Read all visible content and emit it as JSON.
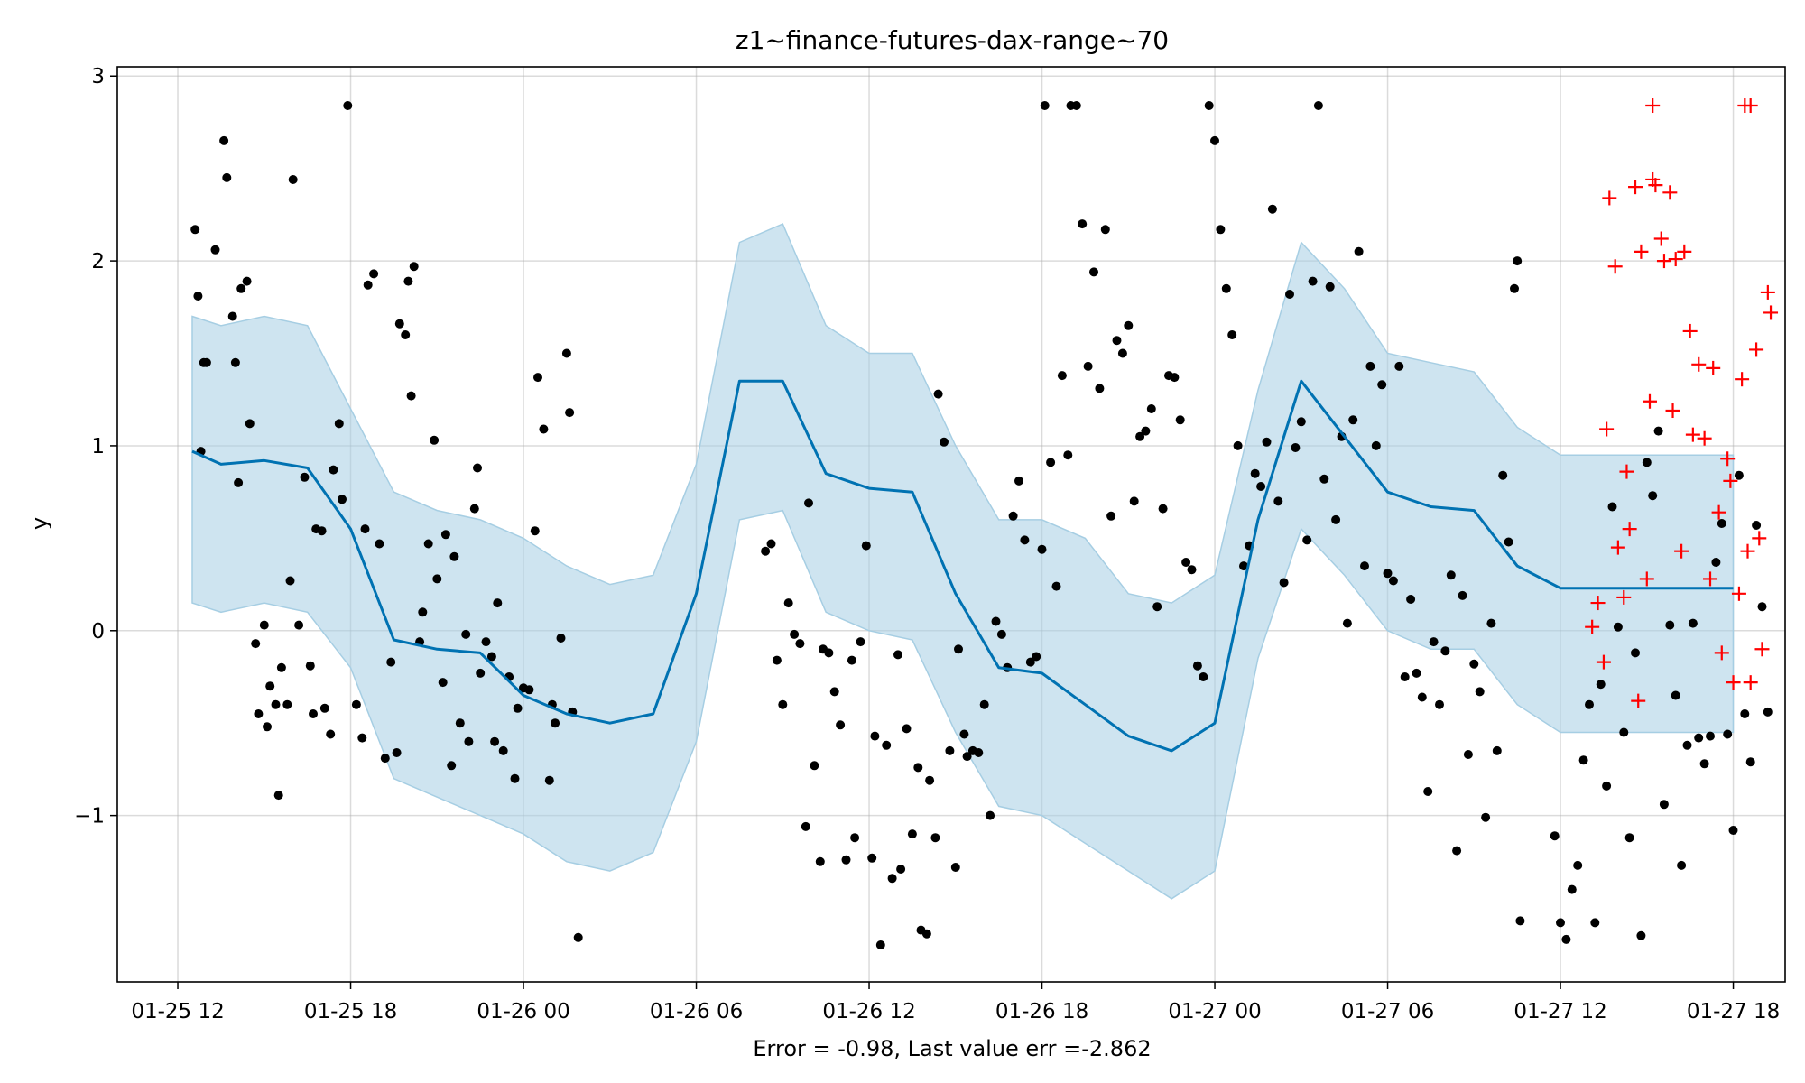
{
  "chart_data": {
    "type": "line",
    "title": "z1~finance-futures-dax-range~70",
    "xlabel": "Error = -0.98, Last value err =-2.862",
    "ylabel": "y",
    "x_ticks": [
      "01-25 12",
      "01-25 18",
      "01-26 00",
      "01-26 06",
      "01-26 12",
      "01-26 18",
      "01-27 00",
      "01-27 06",
      "01-27 12",
      "01-27 18"
    ],
    "y_ticks": [
      "−1",
      "0",
      "1",
      "2",
      "3"
    ],
    "ylim": [
      -1.9,
      3.05
    ],
    "xlim_hours": [
      -2.1,
      55.8
    ],
    "grid": true,
    "colors": {
      "forecast": "#0072B2",
      "band": "#a6cee3",
      "observed": "#000000",
      "future": "#ff0000"
    },
    "forecast": {
      "x_hours": [
        0.5,
        1.5,
        3,
        4.5,
        6,
        7.5,
        9,
        10.5,
        12,
        13.5,
        15,
        16.5,
        18,
        19.5,
        21,
        22.5,
        24,
        25.5,
        27,
        28.5,
        30,
        31.5,
        33,
        34.5,
        36,
        37.5,
        39,
        40.5,
        42,
        43.5,
        45,
        46.5,
        48,
        49.5,
        51,
        52.5,
        54
      ],
      "y": [
        0.97,
        0.9,
        0.92,
        0.88,
        0.55,
        -0.05,
        -0.1,
        -0.12,
        -0.35,
        -0.45,
        -0.5,
        -0.45,
        0.2,
        1.35,
        1.35,
        0.85,
        0.77,
        0.75,
        0.2,
        -0.2,
        -0.23,
        -0.4,
        -0.57,
        -0.65,
        -0.5,
        0.6,
        1.35,
        1.05,
        0.75,
        0.67,
        0.65,
        0.35,
        0.23,
        0.23,
        0.23,
        0.23,
        0.23
      ],
      "upper": [
        1.7,
        1.65,
        1.7,
        1.65,
        1.2,
        0.75,
        0.65,
        0.6,
        0.5,
        0.35,
        0.25,
        0.3,
        0.9,
        2.1,
        2.2,
        1.65,
        1.5,
        1.5,
        1.0,
        0.6,
        0.6,
        0.5,
        0.2,
        0.15,
        0.3,
        1.3,
        2.1,
        1.85,
        1.5,
        1.45,
        1.4,
        1.1,
        0.95,
        0.95,
        0.95,
        0.95,
        0.95
      ],
      "lower": [
        0.15,
        0.1,
        0.15,
        0.1,
        -0.2,
        -0.8,
        -0.9,
        -1.0,
        -1.1,
        -1.25,
        -1.3,
        -1.2,
        -0.6,
        0.6,
        0.65,
        0.1,
        0.0,
        -0.05,
        -0.55,
        -0.95,
        -1.0,
        -1.15,
        -1.3,
        -1.45,
        -1.3,
        -0.15,
        0.55,
        0.3,
        0.0,
        -0.1,
        -0.1,
        -0.4,
        -0.55,
        -0.55,
        -0.55,
        -0.55,
        -0.55
      ]
    },
    "observed": [
      [
        0.6,
        2.17
      ],
      [
        0.7,
        1.81
      ],
      [
        0.8,
        0.97
      ],
      [
        0.9,
        1.45
      ],
      [
        1.0,
        1.45
      ],
      [
        1.3,
        2.06
      ],
      [
        1.6,
        2.65
      ],
      [
        1.7,
        2.45
      ],
      [
        1.9,
        1.7
      ],
      [
        2.0,
        1.45
      ],
      [
        2.1,
        0.8
      ],
      [
        2.2,
        1.85
      ],
      [
        2.4,
        1.89
      ],
      [
        2.5,
        1.12
      ],
      [
        2.7,
        -0.07
      ],
      [
        2.8,
        -0.45
      ],
      [
        3.0,
        0.03
      ],
      [
        3.1,
        -0.52
      ],
      [
        3.2,
        -0.3
      ],
      [
        3.4,
        -0.4
      ],
      [
        3.5,
        -0.89
      ],
      [
        3.6,
        -0.2
      ],
      [
        3.8,
        -0.4
      ],
      [
        3.9,
        0.27
      ],
      [
        4.0,
        2.44
      ],
      [
        4.2,
        0.03
      ],
      [
        4.4,
        0.83
      ],
      [
        4.6,
        -0.19
      ],
      [
        4.7,
        -0.45
      ],
      [
        4.8,
        0.55
      ],
      [
        5.0,
        0.54
      ],
      [
        5.1,
        -0.42
      ],
      [
        5.3,
        -0.56
      ],
      [
        5.4,
        0.87
      ],
      [
        5.6,
        1.12
      ],
      [
        5.7,
        0.71
      ],
      [
        5.9,
        2.84
      ],
      [
        6.2,
        -0.4
      ],
      [
        6.4,
        -0.58
      ],
      [
        6.5,
        0.55
      ],
      [
        6.6,
        1.87
      ],
      [
        6.8,
        1.93
      ],
      [
        7.0,
        0.47
      ],
      [
        7.2,
        -0.69
      ],
      [
        7.4,
        -0.17
      ],
      [
        7.6,
        -0.66
      ],
      [
        7.7,
        1.66
      ],
      [
        7.9,
        1.6
      ],
      [
        8.0,
        1.89
      ],
      [
        8.1,
        1.27
      ],
      [
        8.2,
        1.97
      ],
      [
        8.4,
        -0.06
      ],
      [
        8.5,
        0.1
      ],
      [
        8.7,
        0.47
      ],
      [
        8.9,
        1.03
      ],
      [
        9.0,
        0.28
      ],
      [
        9.2,
        -0.28
      ],
      [
        9.3,
        0.52
      ],
      [
        9.5,
        -0.73
      ],
      [
        9.6,
        0.4
      ],
      [
        9.8,
        -0.5
      ],
      [
        10.0,
        -0.02
      ],
      [
        10.1,
        -0.6
      ],
      [
        10.3,
        0.66
      ],
      [
        10.4,
        0.88
      ],
      [
        10.5,
        -0.23
      ],
      [
        10.7,
        -0.06
      ],
      [
        10.9,
        -0.14
      ],
      [
        11.0,
        -0.6
      ],
      [
        11.1,
        0.15
      ],
      [
        11.3,
        -0.65
      ],
      [
        11.5,
        -0.25
      ],
      [
        11.7,
        -0.8
      ],
      [
        11.8,
        -0.42
      ],
      [
        12.0,
        -0.31
      ],
      [
        12.2,
        -0.32
      ],
      [
        12.4,
        0.54
      ],
      [
        12.5,
        1.37
      ],
      [
        12.7,
        1.09
      ],
      [
        12.9,
        -0.81
      ],
      [
        13.0,
        -0.4
      ],
      [
        13.1,
        -0.5
      ],
      [
        13.3,
        -0.04
      ],
      [
        13.5,
        1.5
      ],
      [
        13.6,
        1.18
      ],
      [
        13.7,
        -0.44
      ],
      [
        13.9,
        -1.66
      ],
      [
        20.4,
        0.43
      ],
      [
        20.6,
        0.47
      ],
      [
        20.8,
        -0.16
      ],
      [
        21.0,
        -0.4
      ],
      [
        21.2,
        0.15
      ],
      [
        21.4,
        -0.02
      ],
      [
        21.6,
        -0.07
      ],
      [
        21.8,
        -1.06
      ],
      [
        21.9,
        0.69
      ],
      [
        22.1,
        -0.73
      ],
      [
        22.3,
        -1.25
      ],
      [
        22.4,
        -0.1
      ],
      [
        22.6,
        -0.12
      ],
      [
        22.8,
        -0.33
      ],
      [
        23.0,
        -0.51
      ],
      [
        23.2,
        -1.24
      ],
      [
        23.4,
        -0.16
      ],
      [
        23.5,
        -1.12
      ],
      [
        23.7,
        -0.06
      ],
      [
        23.9,
        0.46
      ],
      [
        24.1,
        -1.23
      ],
      [
        24.2,
        -0.57
      ],
      [
        24.4,
        -1.7
      ],
      [
        24.6,
        -0.62
      ],
      [
        24.8,
        -1.34
      ],
      [
        25.0,
        -0.13
      ],
      [
        25.1,
        -1.29
      ],
      [
        25.3,
        -0.53
      ],
      [
        25.5,
        -1.1
      ],
      [
        25.7,
        -0.74
      ],
      [
        25.8,
        -1.62
      ],
      [
        26.0,
        -1.64
      ],
      [
        26.1,
        -0.81
      ],
      [
        26.3,
        -1.12
      ],
      [
        26.4,
        1.28
      ],
      [
        26.6,
        1.02
      ],
      [
        26.8,
        -0.65
      ],
      [
        27.0,
        -1.28
      ],
      [
        27.1,
        -0.1
      ],
      [
        27.3,
        -0.56
      ],
      [
        27.4,
        -0.68
      ],
      [
        27.6,
        -0.65
      ],
      [
        27.8,
        -0.66
      ],
      [
        28.0,
        -0.4
      ],
      [
        28.2,
        -1.0
      ],
      [
        28.4,
        0.05
      ],
      [
        28.6,
        -0.02
      ],
      [
        28.8,
        -0.2
      ],
      [
        29.0,
        0.62
      ],
      [
        29.2,
        0.81
      ],
      [
        29.4,
        0.49
      ],
      [
        29.6,
        -0.17
      ],
      [
        29.8,
        -0.14
      ],
      [
        30.0,
        0.44
      ],
      [
        30.1,
        2.84
      ],
      [
        30.3,
        0.91
      ],
      [
        30.5,
        0.24
      ],
      [
        30.7,
        1.38
      ],
      [
        30.9,
        0.95
      ],
      [
        31.0,
        2.84
      ],
      [
        31.2,
        2.84
      ],
      [
        31.4,
        2.2
      ],
      [
        31.6,
        1.43
      ],
      [
        31.8,
        1.94
      ],
      [
        32.0,
        1.31
      ],
      [
        32.2,
        2.17
      ],
      [
        32.4,
        0.62
      ],
      [
        32.6,
        1.57
      ],
      [
        32.8,
        1.5
      ],
      [
        33.0,
        1.65
      ],
      [
        33.2,
        0.7
      ],
      [
        33.4,
        1.05
      ],
      [
        33.6,
        1.08
      ],
      [
        33.8,
        1.2
      ],
      [
        34.0,
        0.13
      ],
      [
        34.2,
        0.66
      ],
      [
        34.4,
        1.38
      ],
      [
        34.6,
        1.37
      ],
      [
        34.8,
        1.14
      ],
      [
        35.0,
        0.37
      ],
      [
        35.2,
        0.33
      ],
      [
        35.4,
        -0.19
      ],
      [
        35.6,
        -0.25
      ],
      [
        35.8,
        2.84
      ],
      [
        36.0,
        2.65
      ],
      [
        36.2,
        2.17
      ],
      [
        36.4,
        1.85
      ],
      [
        36.6,
        1.6
      ],
      [
        36.8,
        1.0
      ],
      [
        37.0,
        0.35
      ],
      [
        37.2,
        0.46
      ],
      [
        37.4,
        0.85
      ],
      [
        37.6,
        0.78
      ],
      [
        37.8,
        1.02
      ],
      [
        38.0,
        2.28
      ],
      [
        38.2,
        0.7
      ],
      [
        38.4,
        0.26
      ],
      [
        38.6,
        1.82
      ],
      [
        38.8,
        0.99
      ],
      [
        39.0,
        1.13
      ],
      [
        39.2,
        0.49
      ],
      [
        39.4,
        1.89
      ],
      [
        39.6,
        2.84
      ],
      [
        39.8,
        0.82
      ],
      [
        40.0,
        1.86
      ],
      [
        40.2,
        0.6
      ],
      [
        40.4,
        1.05
      ],
      [
        40.6,
        0.04
      ],
      [
        40.8,
        1.14
      ],
      [
        41.0,
        2.05
      ],
      [
        41.2,
        0.35
      ],
      [
        41.4,
        1.43
      ],
      [
        41.6,
        1.0
      ],
      [
        41.8,
        1.33
      ],
      [
        42.0,
        0.31
      ],
      [
        42.2,
        0.27
      ],
      [
        42.4,
        1.43
      ],
      [
        42.6,
        -0.25
      ],
      [
        42.8,
        0.17
      ],
      [
        43.0,
        -0.23
      ],
      [
        43.2,
        -0.36
      ],
      [
        43.4,
        -0.87
      ],
      [
        43.6,
        -0.06
      ],
      [
        43.8,
        -0.4
      ],
      [
        44.0,
        -0.11
      ],
      [
        44.2,
        0.3
      ],
      [
        44.4,
        -1.19
      ],
      [
        44.6,
        0.19
      ],
      [
        44.8,
        -0.67
      ],
      [
        45.0,
        -0.18
      ],
      [
        45.2,
        -0.33
      ],
      [
        45.4,
        -1.01
      ],
      [
        45.6,
        0.04
      ],
      [
        45.8,
        -0.65
      ],
      [
        46.0,
        0.84
      ],
      [
        46.2,
        0.48
      ],
      [
        46.4,
        1.85
      ],
      [
        46.5,
        2.0
      ],
      [
        46.6,
        -1.57
      ],
      [
        47.8,
        -1.11
      ],
      [
        48.0,
        -1.58
      ],
      [
        48.2,
        -1.67
      ],
      [
        48.4,
        -1.4
      ],
      [
        48.6,
        -1.27
      ],
      [
        48.8,
        -0.7
      ],
      [
        49.0,
        -0.4
      ],
      [
        49.2,
        -1.58
      ],
      [
        49.4,
        -0.29
      ],
      [
        49.6,
        -0.84
      ],
      [
        49.8,
        0.67
      ],
      [
        50.0,
        0.02
      ],
      [
        50.2,
        -0.55
      ],
      [
        50.4,
        -1.12
      ],
      [
        50.6,
        -0.12
      ],
      [
        50.8,
        -1.65
      ],
      [
        51.0,
        0.91
      ],
      [
        51.2,
        0.73
      ],
      [
        51.4,
        1.08
      ],
      [
        51.6,
        -0.94
      ],
      [
        51.8,
        0.03
      ],
      [
        52.0,
        -0.35
      ],
      [
        52.2,
        -1.27
      ],
      [
        52.4,
        -0.62
      ],
      [
        52.6,
        0.04
      ],
      [
        52.8,
        -0.58
      ],
      [
        53.0,
        -0.72
      ],
      [
        53.2,
        -0.57
      ],
      [
        53.4,
        0.37
      ],
      [
        53.6,
        0.58
      ],
      [
        53.8,
        -0.56
      ],
      [
        54.0,
        -1.08
      ],
      [
        54.2,
        0.84
      ],
      [
        54.4,
        -0.45
      ],
      [
        54.6,
        -0.71
      ],
      [
        54.8,
        0.57
      ],
      [
        55.0,
        0.13
      ],
      [
        55.2,
        -0.44
      ]
    ],
    "future": [
      [
        49.1,
        0.02
      ],
      [
        49.3,
        0.15
      ],
      [
        49.5,
        -0.17
      ],
      [
        49.6,
        1.09
      ],
      [
        49.7,
        2.34
      ],
      [
        49.9,
        1.97
      ],
      [
        50.0,
        0.45
      ],
      [
        50.2,
        0.18
      ],
      [
        50.3,
        0.86
      ],
      [
        50.4,
        0.55
      ],
      [
        50.6,
        2.4
      ],
      [
        50.7,
        -0.38
      ],
      [
        50.8,
        2.05
      ],
      [
        51.0,
        0.28
      ],
      [
        51.1,
        1.24
      ],
      [
        51.2,
        2.44
      ],
      [
        51.3,
        2.41
      ],
      [
        51.5,
        2.12
      ],
      [
        51.6,
        2.0
      ],
      [
        51.8,
        2.37
      ],
      [
        51.9,
        1.19
      ],
      [
        52.0,
        2.01
      ],
      [
        52.2,
        0.43
      ],
      [
        52.3,
        2.05
      ],
      [
        52.5,
        1.62
      ],
      [
        52.6,
        1.06
      ],
      [
        52.8,
        1.44
      ],
      [
        53.0,
        1.04
      ],
      [
        53.2,
        0.28
      ],
      [
        53.3,
        1.42
      ],
      [
        53.5,
        0.64
      ],
      [
        53.6,
        -0.12
      ],
      [
        53.8,
        0.93
      ],
      [
        53.9,
        0.81
      ],
      [
        54.0,
        -0.28
      ],
      [
        54.2,
        0.2
      ],
      [
        54.3,
        1.36
      ],
      [
        54.5,
        0.43
      ],
      [
        54.6,
        -0.28
      ],
      [
        54.8,
        1.52
      ],
      [
        54.9,
        0.5
      ],
      [
        55.0,
        -0.1
      ],
      [
        55.2,
        1.83
      ],
      [
        55.3,
        1.72
      ],
      [
        54.4,
        2.84
      ],
      [
        54.6,
        2.84
      ],
      [
        51.2,
        2.84
      ]
    ]
  }
}
